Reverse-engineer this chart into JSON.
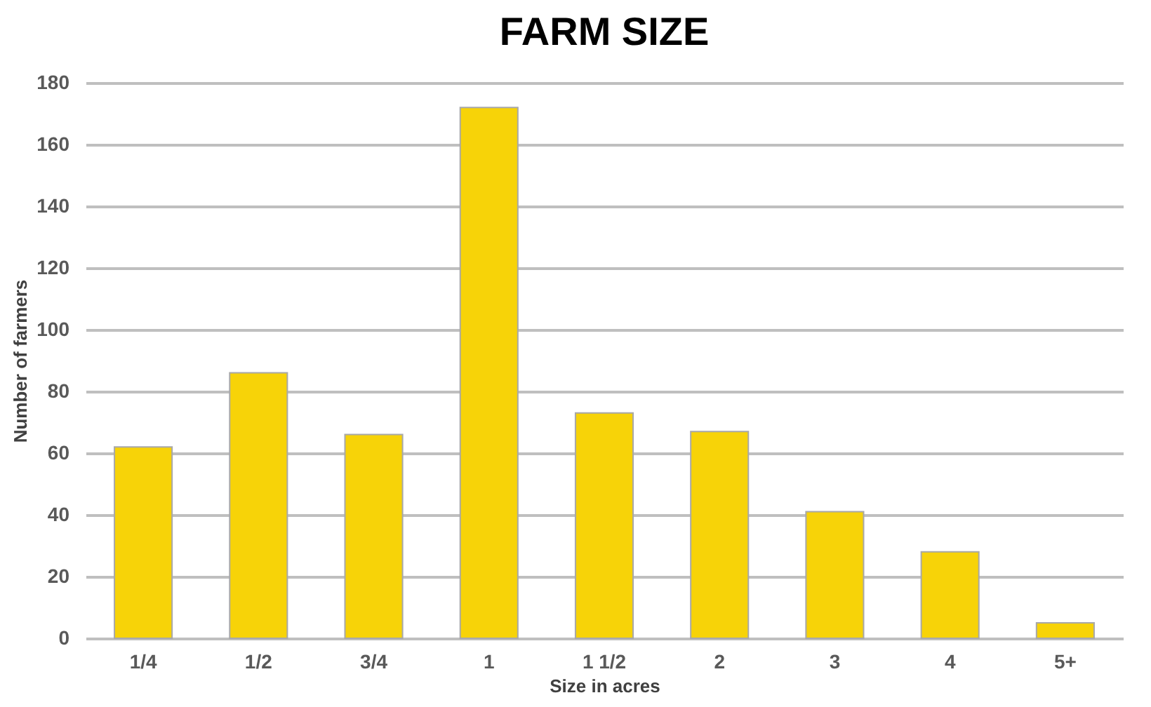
{
  "chart_data": {
    "type": "bar",
    "title": "FARM SIZE",
    "xlabel": "Size in acres",
    "ylabel": "Number of farmers",
    "categories": [
      "1/4",
      "1/2",
      "3/4",
      "1",
      "1 1/2",
      "2",
      "3",
      "4",
      "5+"
    ],
    "values": [
      62,
      86,
      66,
      172,
      73,
      67,
      41,
      28,
      5
    ],
    "color": "#f7d308",
    "ylim": [
      0,
      180
    ],
    "yticks": [
      0,
      20,
      40,
      60,
      80,
      100,
      120,
      140,
      160,
      180
    ],
    "grid": "y"
  }
}
